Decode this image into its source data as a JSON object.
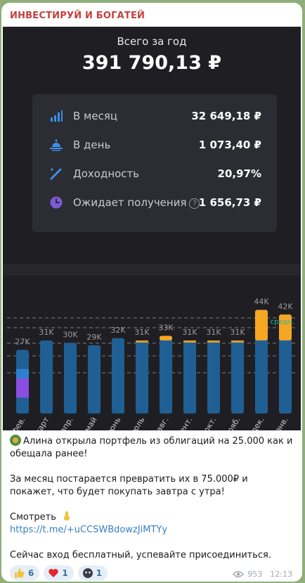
{
  "channel": {
    "name": "ИНВЕСТИРУЙ И БОГАТЕЙ"
  },
  "summary": {
    "total_label": "Всего за год",
    "total_value": "391 790,13 ₽",
    "rows": [
      {
        "label": "В месяц",
        "value": "32 649,18 ₽",
        "icon": "bar-chart-icon",
        "color": "#3d8ee8"
      },
      {
        "label": "В день",
        "value": "1 073,40 ₽",
        "icon": "sunrise-icon",
        "color": "#3d8ee8"
      },
      {
        "label": "Доходность",
        "value": "20,97%",
        "icon": "percent-slash-icon",
        "color": "#3d8ee8"
      },
      {
        "label": "Ожидает получения",
        "value": "1 656,73 ₽",
        "icon": "clock-icon",
        "color": "#7b5ad6"
      }
    ]
  },
  "chart_data": {
    "type": "bar",
    "categories": [
      "фев.",
      "март",
      "апр.",
      "май",
      "июнь",
      "июль",
      "авг.",
      "сент.",
      "окт.",
      "нояб.",
      "дек.",
      "янв."
    ],
    "value_labels": [
      "27K",
      "31K",
      "30K",
      "29K",
      "32K",
      "31K",
      "33K",
      "31K",
      "31K",
      "31K",
      "44K",
      "42K"
    ],
    "series": [
      {
        "values": [
          27,
          31,
          30,
          29,
          32,
          31,
          33,
          31,
          31,
          31,
          44,
          42
        ]
      }
    ],
    "avg_label": "средн.",
    "colors": {
      "bar": "#1f5f93",
      "top": "#f5a623",
      "pending": "#8a4fe0",
      "light": "#2f7fd0"
    }
  },
  "message": {
    "line1": "Алина открыла портфель из облигаций на 25.000 как и обещала ранее!",
    "line2": "За месяц постарается превратить их в 75.000₽ и покажет, что будет покупать завтра с утра!",
    "see_label": "Смотреть",
    "link": "https://t.me/+uCCSWBdowzJiMTYy",
    "line3": "Сейчас вход бесплатный, успевайте присоединиться."
  },
  "reactions": [
    {
      "icon": "thumbs-up-icon",
      "count": "6"
    },
    {
      "icon": "heart-icon",
      "count": "1"
    },
    {
      "icon": "blob-face-icon",
      "count": "1"
    }
  ],
  "meta": {
    "views": "953",
    "time": "12:13"
  }
}
